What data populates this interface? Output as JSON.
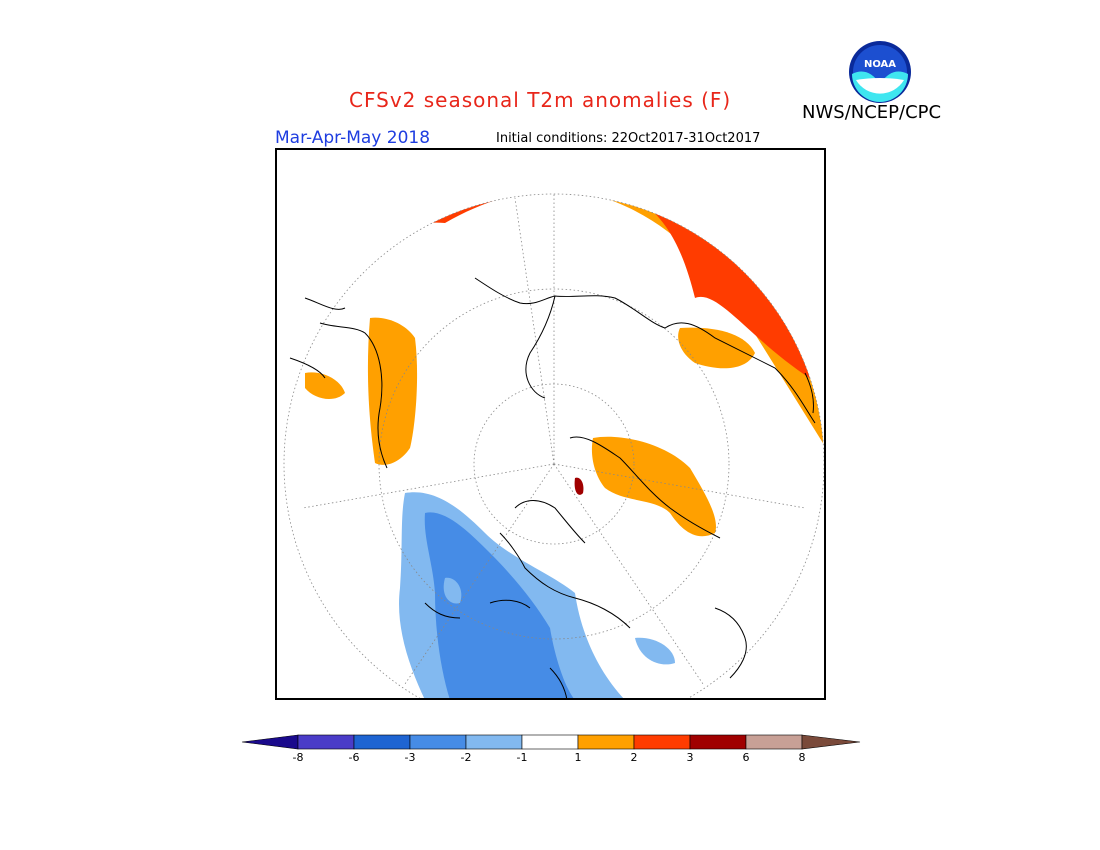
{
  "header": {
    "title": "CFSv2 seasonal T2m anomalies (F)",
    "agency": "NWS/NCEP/CPC",
    "logo_text": "NOAA",
    "season": "Mar-Apr-May 2018",
    "initial_conditions": "Initial conditions: 22Oct2017-31Oct2017"
  },
  "map": {
    "projection": "north-polar-stereographic",
    "variable": "2m temperature anomaly",
    "units": "F"
  },
  "legend": {
    "levels": [
      "-8",
      "-6",
      "-3",
      "-2",
      "-1",
      "1",
      "2",
      "3",
      "6",
      "8"
    ],
    "colors": [
      "#1a0a8c",
      "#4a3cc8",
      "#1e64d2",
      "#468ce6",
      "#82b9f0",
      "#ffffff",
      "#ffa000",
      "#ff3c00",
      "#a00000",
      "#c8a096",
      "#7a4a3a"
    ]
  }
}
